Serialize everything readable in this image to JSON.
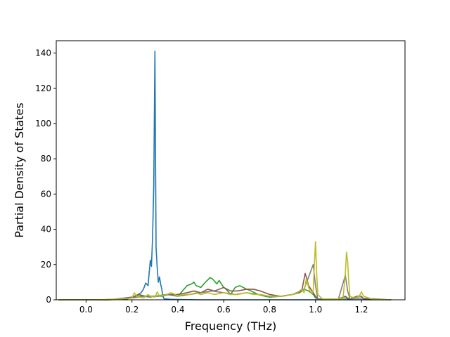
{
  "chart_data": {
    "type": "line",
    "title": "",
    "xlabel": "Frequency (THz)",
    "ylabel": "Partial Density of States",
    "xlim": [
      -0.13,
      1.39
    ],
    "ylim": [
      0,
      147
    ],
    "xticks": [
      0.0,
      0.2,
      0.4,
      0.6,
      0.8,
      1.0,
      1.2
    ],
    "xtick_labels": [
      "0.0",
      "0.2",
      "0.4",
      "0.6",
      "0.8",
      "1.0",
      "1.2"
    ],
    "yticks": [
      0,
      20,
      40,
      60,
      80,
      100,
      120,
      140
    ],
    "ytick_labels": [
      "0",
      "20",
      "40",
      "60",
      "80",
      "100",
      "120",
      "140"
    ],
    "grid": false,
    "legend": "none",
    "series": [
      {
        "color": "#1f77b4",
        "x": [
          -0.12,
          0.1,
          0.18,
          0.2,
          0.22,
          0.24,
          0.25,
          0.26,
          0.27,
          0.28,
          0.285,
          0.29,
          0.295,
          0.3,
          0.305,
          0.31,
          0.315,
          0.32,
          0.325,
          0.33,
          0.335,
          0.34,
          0.35,
          0.37,
          0.4,
          0.5,
          1.33
        ],
        "y": [
          0,
          0,
          0.5,
          1.5,
          2.5,
          4,
          6,
          9.5,
          8,
          22.5,
          19,
          36,
          65,
          141,
          30,
          18,
          10,
          13,
          9,
          6,
          2,
          0.5,
          0.5,
          0.3,
          0.2,
          0,
          0
        ]
      },
      {
        "color": "#2ca02c",
        "x": [
          -0.12,
          0.1,
          0.2,
          0.22,
          0.25,
          0.28,
          0.3,
          0.33,
          0.36,
          0.4,
          0.42,
          0.44,
          0.46,
          0.47,
          0.48,
          0.5,
          0.52,
          0.54,
          0.55,
          0.57,
          0.58,
          0.6,
          0.61,
          0.63,
          0.65,
          0.67,
          0.7,
          0.72,
          0.75,
          0.78,
          0.8,
          0.85,
          0.9,
          0.93,
          0.95,
          0.97,
          0.99,
          1.0,
          1.01,
          1.05,
          1.1,
          1.13,
          1.14,
          1.15,
          1.18,
          1.2,
          1.21,
          1.33
        ],
        "y": [
          0,
          0,
          1,
          2,
          2,
          1.5,
          2,
          2,
          3,
          2,
          5,
          8,
          9,
          10,
          8,
          7,
          10,
          12.5,
          12,
          9,
          11,
          7,
          6,
          3,
          7,
          8,
          6,
          5,
          3,
          2,
          1.5,
          2,
          3,
          4,
          6,
          5,
          3,
          1,
          0.5,
          0.5,
          0.5,
          1,
          0.5,
          0.5,
          1,
          1,
          0.5,
          0
        ]
      },
      {
        "color": "#8c564b",
        "x": [
          -0.12,
          0.1,
          0.2,
          0.23,
          0.26,
          0.3,
          0.35,
          0.4,
          0.44,
          0.47,
          0.5,
          0.53,
          0.56,
          0.58,
          0.6,
          0.63,
          0.66,
          0.7,
          0.73,
          0.76,
          0.8,
          0.85,
          0.9,
          0.94,
          0.955,
          0.97,
          0.99,
          1.0,
          1.01,
          1.05,
          1.1,
          1.13,
          1.14,
          1.15,
          1.18,
          1.2,
          1.21,
          1.33
        ],
        "y": [
          0,
          0,
          1.5,
          3,
          2,
          2,
          3,
          3,
          4,
          5,
          4,
          6,
          5,
          6,
          7,
          5,
          5,
          6,
          6,
          5,
          3,
          2,
          3,
          5,
          15,
          8,
          4,
          2,
          0.5,
          0.5,
          0.5,
          2,
          1,
          0.5,
          2,
          2,
          0.5,
          0
        ]
      },
      {
        "color": "#7f7f7f",
        "x": [
          -0.12,
          0.1,
          0.2,
          0.25,
          0.3,
          0.35,
          0.4,
          0.45,
          0.5,
          0.55,
          0.6,
          0.65,
          0.7,
          0.75,
          0.8,
          0.85,
          0.9,
          0.95,
          0.99,
          1.0,
          1.01,
          1.1,
          1.13,
          1.14,
          1.15,
          1.2,
          1.33
        ],
        "y": [
          0,
          0,
          1,
          2,
          2,
          3,
          2,
          3,
          4,
          5,
          4,
          3,
          4,
          3,
          2,
          2,
          3,
          6,
          20,
          8,
          0.5,
          0.5,
          14,
          5,
          0.5,
          1,
          0
        ]
      },
      {
        "color": "#bcbd22",
        "x": [
          -0.12,
          0.05,
          0.1,
          0.15,
          0.2,
          0.21,
          0.22,
          0.25,
          0.27,
          0.28,
          0.3,
          0.31,
          0.32,
          0.35,
          0.37,
          0.38,
          0.4,
          0.42,
          0.45,
          0.48,
          0.5,
          0.53,
          0.56,
          0.6,
          0.63,
          0.66,
          0.7,
          0.73,
          0.76,
          0.8,
          0.83,
          0.86,
          0.9,
          0.92,
          0.94,
          0.95,
          0.96,
          0.97,
          0.98,
          0.99,
          0.995,
          1.0,
          1.005,
          1.01,
          1.03,
          1.06,
          1.1,
          1.12,
          1.13,
          1.135,
          1.14,
          1.145,
          1.15,
          1.17,
          1.19,
          1.2,
          1.21,
          1.25,
          1.33
        ],
        "y": [
          0,
          0,
          0.3,
          0.5,
          1,
          4,
          2,
          1,
          3,
          2,
          1.5,
          4.5,
          2,
          3,
          4,
          3.5,
          2,
          3,
          3,
          4,
          3,
          4,
          3,
          4,
          3,
          3,
          4,
          3,
          3,
          2,
          2,
          2,
          3,
          4,
          6,
          4,
          12,
          7,
          4,
          5,
          20,
          33,
          15,
          3,
          0.5,
          0.5,
          0.5,
          1,
          15,
          27,
          22,
          10,
          2,
          1,
          2,
          4.5,
          2,
          0.3,
          0
        ]
      }
    ]
  }
}
